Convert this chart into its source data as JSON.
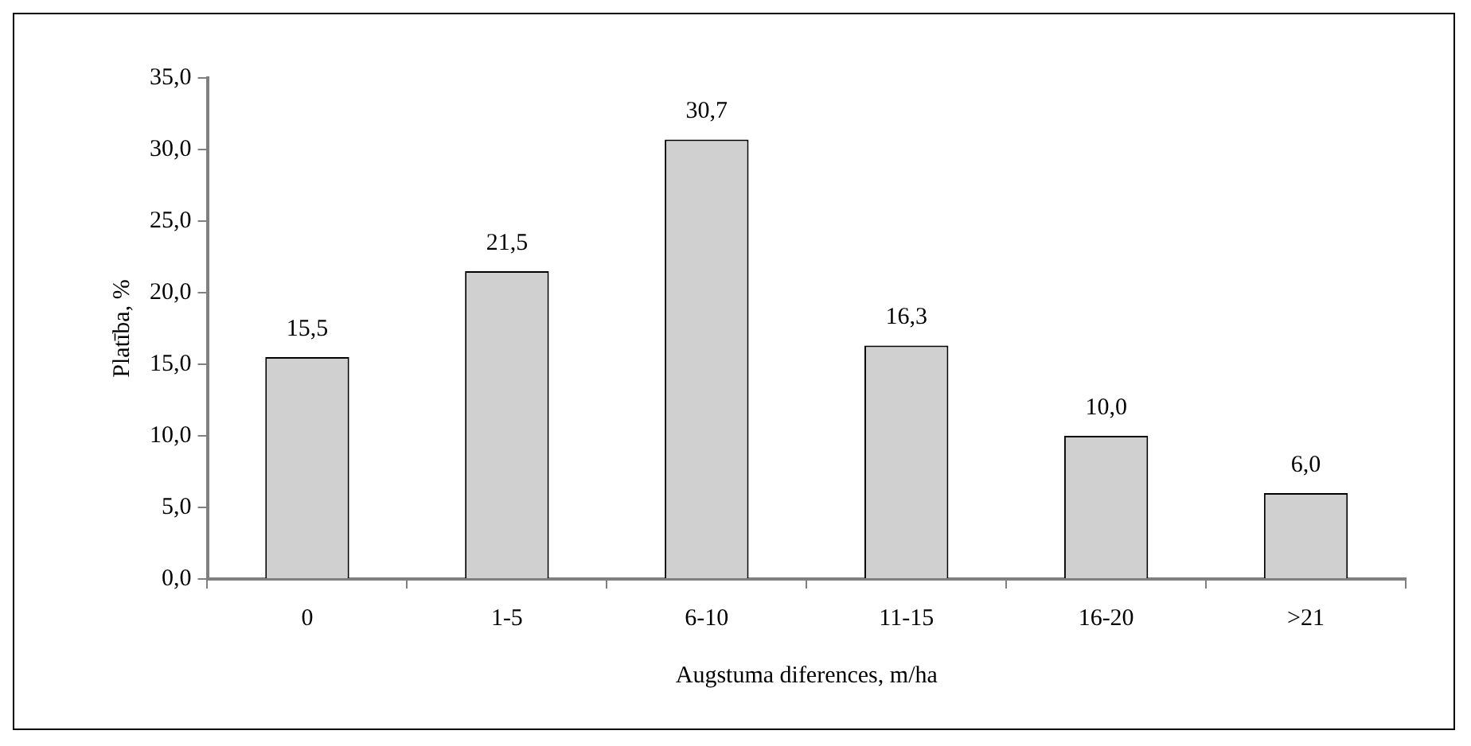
{
  "chart_data": {
    "type": "bar",
    "xlabel": "Augstuma diferences, m/ha",
    "ylabel": "Platība, %",
    "categories": [
      "0",
      "1-5",
      "6-10",
      "11-15",
      "16-20",
      ">21"
    ],
    "values": [
      15.5,
      21.5,
      30.7,
      16.3,
      10.0,
      6.0
    ],
    "value_labels": [
      "15,5",
      "21,5",
      "30,7",
      "16,3",
      "10,0",
      "6,0"
    ],
    "color": "#d0d0d0",
    "ylim": [
      0,
      35
    ],
    "yticks": [
      {
        "value": 0,
        "label": "0,0"
      },
      {
        "value": 5,
        "label": "5,0"
      },
      {
        "value": 10,
        "label": "10,0"
      },
      {
        "value": 15,
        "label": "15,0"
      },
      {
        "value": 20,
        "label": "20,0"
      },
      {
        "value": 25,
        "label": "25,0"
      },
      {
        "value": 30,
        "label": "30,0"
      },
      {
        "value": 35,
        "label": "35,0"
      }
    ],
    "grid": false,
    "legend": false
  }
}
